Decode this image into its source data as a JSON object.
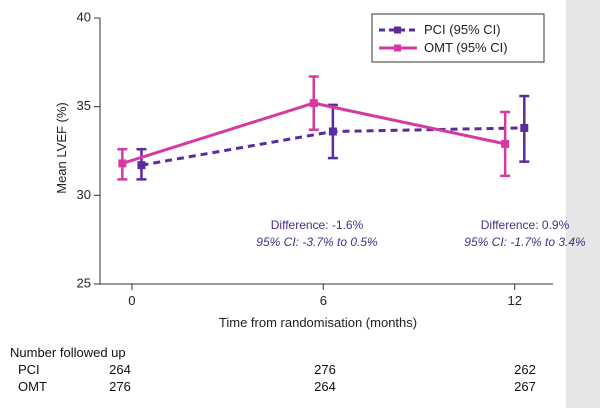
{
  "chart_data": {
    "type": "line",
    "title": "",
    "xlabel": "Time from randomisation (months)",
    "ylabel": "Mean LVEF (%)",
    "x_ticks": [
      "0",
      "6",
      "12"
    ],
    "y_ticks": [
      "25",
      "30",
      "35",
      "40"
    ],
    "xlim": [
      -1,
      13.2
    ],
    "ylim": [
      25,
      40
    ],
    "x": [
      0,
      6,
      12
    ],
    "series": [
      {
        "name": "PCI (95% CI)",
        "color": "#5b2a9e",
        "line_style": "dashed",
        "offset": 0.3,
        "values": [
          31.7,
          33.6,
          33.8
        ],
        "ci_low": [
          30.9,
          32.1,
          31.9
        ],
        "ci_high": [
          32.6,
          35.1,
          35.6
        ]
      },
      {
        "name": "OMT (95% CI)",
        "color": "#d63aa2",
        "line_style": "solid",
        "offset": -0.3,
        "values": [
          31.8,
          35.2,
          32.9
        ],
        "ci_low": [
          30.9,
          33.7,
          31.1
        ],
        "ci_high": [
          32.6,
          36.7,
          34.7
        ]
      }
    ],
    "annotations": [
      {
        "x": 6,
        "title": "Difference: -1.6%",
        "ci": "95% CI: -3.7% to 0.5%"
      },
      {
        "x": 12,
        "title": "Difference: 0.9%",
        "ci": "95% CI: -1.7% to 3.4%"
      }
    ],
    "legend_position": "top-right"
  },
  "followup": {
    "header": "Number followed up",
    "rows": [
      {
        "label": "PCI",
        "values": [
          "264",
          "276",
          "262"
        ]
      },
      {
        "label": "OMT",
        "values": [
          "276",
          "264",
          "267"
        ]
      }
    ]
  }
}
